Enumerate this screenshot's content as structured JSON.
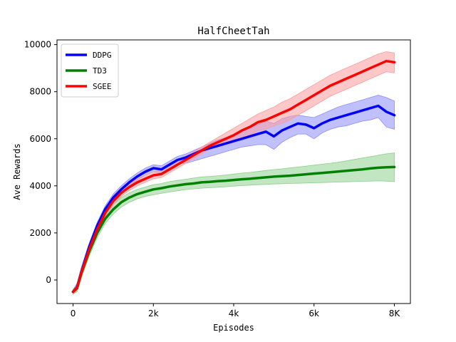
{
  "chart_data": {
    "type": "line",
    "title": "HalfCheetTah",
    "xlabel": "Episodes",
    "ylabel": "Ave Rewards",
    "xlim": [
      -400,
      8400
    ],
    "ylim": [
      -1000,
      10200
    ],
    "xticks": [
      0,
      2000,
      4000,
      6000,
      8000
    ],
    "xtick_labels": [
      "0",
      "2k",
      "4k",
      "6k",
      "8K"
    ],
    "yticks": [
      0,
      2000,
      4000,
      6000,
      8000,
      10000
    ],
    "ytick_labels": [
      "0",
      "2000",
      "4000",
      "6000",
      "8000",
      "10000"
    ],
    "grid": false,
    "legend_position": "top-left",
    "series": [
      {
        "name": "DDPG",
        "color": "#0000ff",
        "band_color": "#8c8cff",
        "x": [
          0,
          100,
          200,
          400,
          600,
          800,
          1000,
          1200,
          1400,
          1600,
          1800,
          2000,
          2200,
          2400,
          2600,
          2800,
          3000,
          3200,
          3400,
          3600,
          3800,
          4000,
          4200,
          4400,
          4600,
          4800,
          5000,
          5200,
          5400,
          5600,
          5800,
          6000,
          6200,
          6400,
          6600,
          6800,
          7000,
          7200,
          7400,
          7600,
          7800,
          8000
        ],
        "y": [
          -500,
          -300,
          300,
          1400,
          2300,
          3000,
          3500,
          3850,
          4150,
          4400,
          4600,
          4750,
          4700,
          4900,
          5100,
          5200,
          5350,
          5500,
          5600,
          5700,
          5800,
          5900,
          6000,
          6100,
          6200,
          6300,
          6100,
          6350,
          6500,
          6650,
          6600,
          6450,
          6650,
          6800,
          6900,
          7000,
          7100,
          7200,
          7300,
          7400,
          7150,
          7000
        ],
        "upper": [
          -400,
          -150,
          500,
          1550,
          2450,
          3150,
          3650,
          4000,
          4300,
          4550,
          4750,
          4900,
          4850,
          5050,
          5250,
          5350,
          5500,
          5650,
          5800,
          5950,
          6050,
          6200,
          6350,
          6500,
          6600,
          6750,
          6650,
          6850,
          6950,
          7000,
          6950,
          6900,
          7050,
          7200,
          7350,
          7450,
          7550,
          7650,
          7750,
          7850,
          7750,
          7600
        ],
        "lower": [
          -600,
          -450,
          100,
          1250,
          2150,
          2850,
          3350,
          3700,
          4000,
          4250,
          4450,
          4600,
          4550,
          4750,
          4950,
          4950,
          5050,
          5150,
          5250,
          5350,
          5450,
          5550,
          5650,
          5700,
          5750,
          5750,
          5550,
          5850,
          6050,
          6200,
          6200,
          6000,
          6250,
          6400,
          6500,
          6550,
          6650,
          6750,
          6800,
          6900,
          6500,
          6400
        ]
      },
      {
        "name": "TD3",
        "color": "#008000",
        "band_color": "#8fcf8f",
        "x": [
          0,
          100,
          200,
          400,
          600,
          800,
          1000,
          1200,
          1400,
          1600,
          1800,
          2000,
          2200,
          2400,
          2600,
          2800,
          3000,
          3200,
          3400,
          3600,
          3800,
          4000,
          4200,
          4400,
          4600,
          4800,
          5000,
          5200,
          5400,
          5600,
          5800,
          6000,
          6200,
          6400,
          6600,
          6800,
          7000,
          7200,
          7400,
          7600,
          7800,
          8000
        ],
        "y": [
          -500,
          -350,
          250,
          1200,
          2000,
          2600,
          3000,
          3300,
          3500,
          3650,
          3750,
          3850,
          3900,
          3970,
          4020,
          4070,
          4100,
          4150,
          4170,
          4200,
          4220,
          4250,
          4280,
          4300,
          4330,
          4360,
          4390,
          4410,
          4430,
          4460,
          4490,
          4520,
          4550,
          4580,
          4610,
          4640,
          4670,
          4700,
          4740,
          4770,
          4790,
          4800
        ],
        "upper": [
          -400,
          -200,
          450,
          1400,
          2200,
          2800,
          3200,
          3500,
          3700,
          3850,
          3950,
          4050,
          4100,
          4180,
          4230,
          4280,
          4330,
          4380,
          4400,
          4430,
          4460,
          4500,
          4540,
          4570,
          4610,
          4650,
          4690,
          4720,
          4760,
          4800,
          4840,
          4880,
          4920,
          4960,
          5000,
          5060,
          5120,
          5180,
          5240,
          5300,
          5360,
          5400
        ],
        "lower": [
          -600,
          -500,
          50,
          1000,
          1800,
          2400,
          2800,
          3100,
          3300,
          3450,
          3550,
          3620,
          3680,
          3740,
          3790,
          3840,
          3870,
          3900,
          3920,
          3940,
          3960,
          3990,
          4010,
          4030,
          4050,
          4060,
          4080,
          4090,
          4100,
          4110,
          4120,
          4130,
          4140,
          4150,
          4160,
          4170,
          4180,
          4190,
          4200,
          4210,
          4200,
          4180
        ]
      },
      {
        "name": "SGEE",
        "color": "#ff0000",
        "band_color": "#ff9a9a",
        "x": [
          0,
          100,
          200,
          400,
          600,
          800,
          1000,
          1200,
          1400,
          1600,
          1800,
          2000,
          2200,
          2400,
          2600,
          2800,
          3000,
          3200,
          3400,
          3600,
          3800,
          4000,
          4200,
          4400,
          4600,
          4800,
          5000,
          5200,
          5400,
          5600,
          5800,
          6000,
          6200,
          6400,
          6600,
          6800,
          7000,
          7200,
          7400,
          7600,
          7800,
          8000
        ],
        "y": [
          -500,
          -320,
          280,
          1300,
          2150,
          2850,
          3350,
          3700,
          3950,
          4150,
          4300,
          4450,
          4500,
          4700,
          4900,
          5100,
          5300,
          5500,
          5700,
          5850,
          6000,
          6150,
          6350,
          6500,
          6700,
          6800,
          6950,
          7100,
          7250,
          7450,
          7650,
          7850,
          8050,
          8250,
          8400,
          8550,
          8700,
          8850,
          9000,
          9150,
          9300,
          9250
        ],
        "upper": [
          -420,
          -200,
          450,
          1450,
          2300,
          3000,
          3500,
          3850,
          4100,
          4300,
          4450,
          4600,
          4650,
          4850,
          5050,
          5250,
          5450,
          5650,
          5850,
          6050,
          6250,
          6450,
          6650,
          6850,
          7050,
          7200,
          7350,
          7550,
          7700,
          7900,
          8100,
          8300,
          8500,
          8700,
          8850,
          9000,
          9150,
          9300,
          9450,
          9600,
          9700,
          9650
        ],
        "lower": [
          -580,
          -440,
          110,
          1150,
          2000,
          2700,
          3200,
          3550,
          3800,
          4000,
          4150,
          4300,
          4350,
          4550,
          4750,
          4950,
          5150,
          5350,
          5550,
          5650,
          5750,
          5850,
          6050,
          6150,
          6350,
          6400,
          6550,
          6650,
          6800,
          7000,
          7200,
          7400,
          7600,
          7800,
          7950,
          8100,
          8250,
          8400,
          8550,
          8700,
          8850,
          8800
        ]
      }
    ]
  }
}
